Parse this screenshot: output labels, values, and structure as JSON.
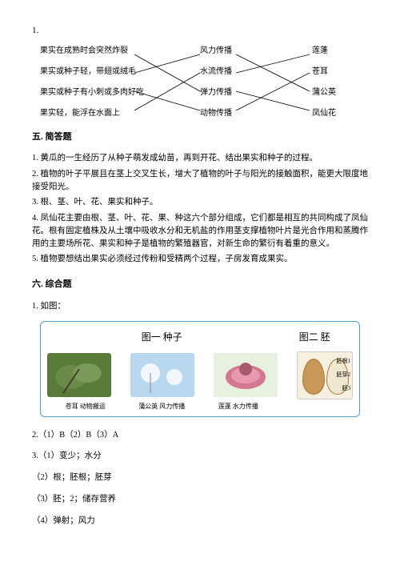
{
  "q1_num": "1.",
  "matching": {
    "left": [
      "果实在成熟时会突然炸裂",
      "果实或种子轻，带翅或绒毛",
      "果实或种子有小刺或多肉好吃",
      "果实轻，能浮在水面上"
    ],
    "mid": [
      "风力传播",
      "水流传播",
      "弹力传播",
      "动物传播"
    ],
    "right": [
      "莲蓬",
      "苍耳",
      "蒲公英",
      "凤仙花"
    ],
    "lines1": [
      [
        0,
        2
      ],
      [
        1,
        0
      ],
      [
        2,
        3
      ],
      [
        3,
        1
      ]
    ],
    "lines2": [
      [
        0,
        2
      ],
      [
        1,
        0
      ],
      [
        2,
        3
      ],
      [
        3,
        1
      ]
    ],
    "x": {
      "l_end": 118,
      "m_start": 200,
      "m_end": 245,
      "r_start": 337
    },
    "y": [
      10,
      33,
      56,
      80
    ]
  },
  "section5_title": "五. 简答题",
  "answers5": [
    "1. 黄瓜的一生经历了从种子萌发成幼苗，再到开花、结出果实和种子的过程。",
    "2. 植物的叶子平展且在茎上交叉生长，增大了植物的叶子与阳光的接触面积，能更大限度地接受阳光。",
    "3. 根、茎、叶、花、果实和种子。",
    "4. 凤仙花主要由根、茎、叶、花、果、种这六个部分组成，它们都是相互的共同构成了凤仙花。根有固定植株及从土壤中吸收水分和无机盐的作用茎支撑植物叶片是光合作用和蒸腾作用的主要场所花、果实和种子是植物的繁殖器官，对新生命的繁衍有着重的意义。",
    "5. 植物要想结出果实必须经过传粉和受精两个过程，子房发育成果实。"
  ],
  "section6_title": "六. 综合题",
  "q6_1": "1. 如图：",
  "figure": {
    "title1": "图一 种子",
    "title2": "图二 胚",
    "labels": [
      "苍耳 动物搬运",
      "蒲公英 风力传播",
      "莲蓬 水力传播",
      ""
    ],
    "embryo_labels": [
      "胚根1",
      "胚芽2",
      "胚3"
    ],
    "colors": {
      "img1": "#5a7a3a",
      "img2": "#a8c8e8",
      "img3": "#d47890",
      "seed_outer": "#c89858",
      "seed_inner": "#f0e8d0"
    }
  },
  "answers6": [
    "2.（1）B（2）B（3）A",
    "3.（1）变少；水分",
    "（2）根；胚根；胚芽",
    "（3）胚；2；储存营养",
    "（4）弹射；风力"
  ]
}
